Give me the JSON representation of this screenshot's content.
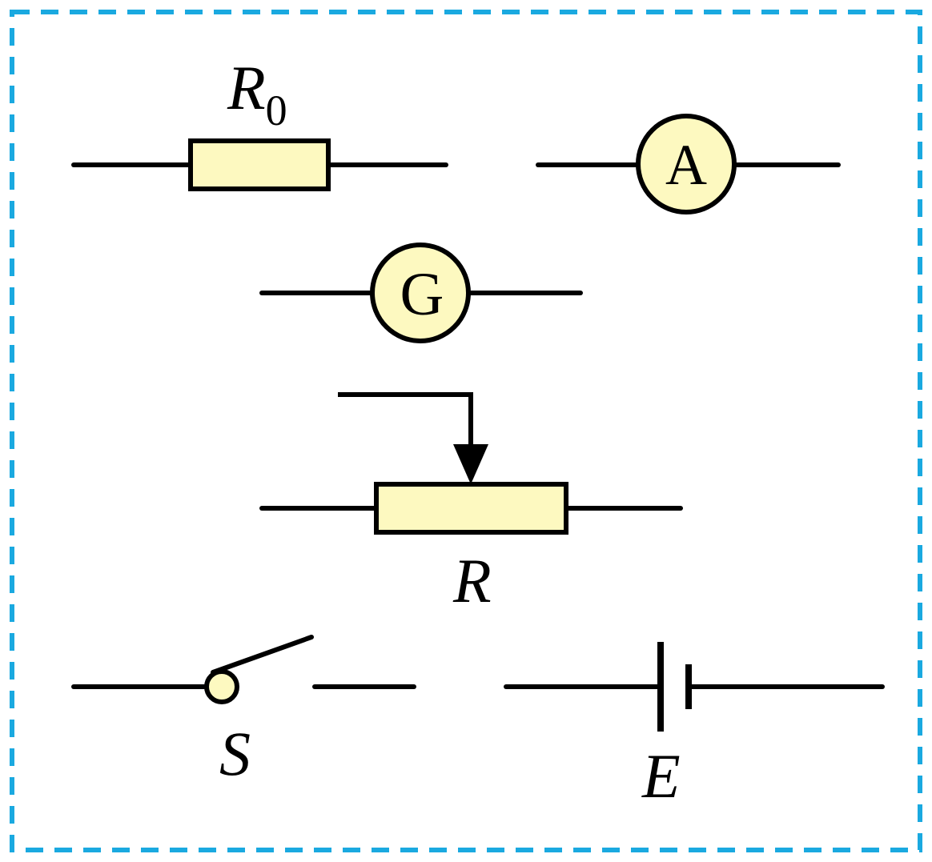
{
  "colors": {
    "frame": "#1aa9e0",
    "component_fill": "#fdf9c0",
    "line": "#000000"
  },
  "components": {
    "fixed_resistor": {
      "symbol": "R",
      "subscript": "0"
    },
    "ammeter": {
      "symbol": "A"
    },
    "galvanometer": {
      "symbol": "G"
    },
    "rheostat": {
      "symbol": "R"
    },
    "switch": {
      "symbol": "S"
    },
    "battery": {
      "symbol": "E"
    }
  }
}
